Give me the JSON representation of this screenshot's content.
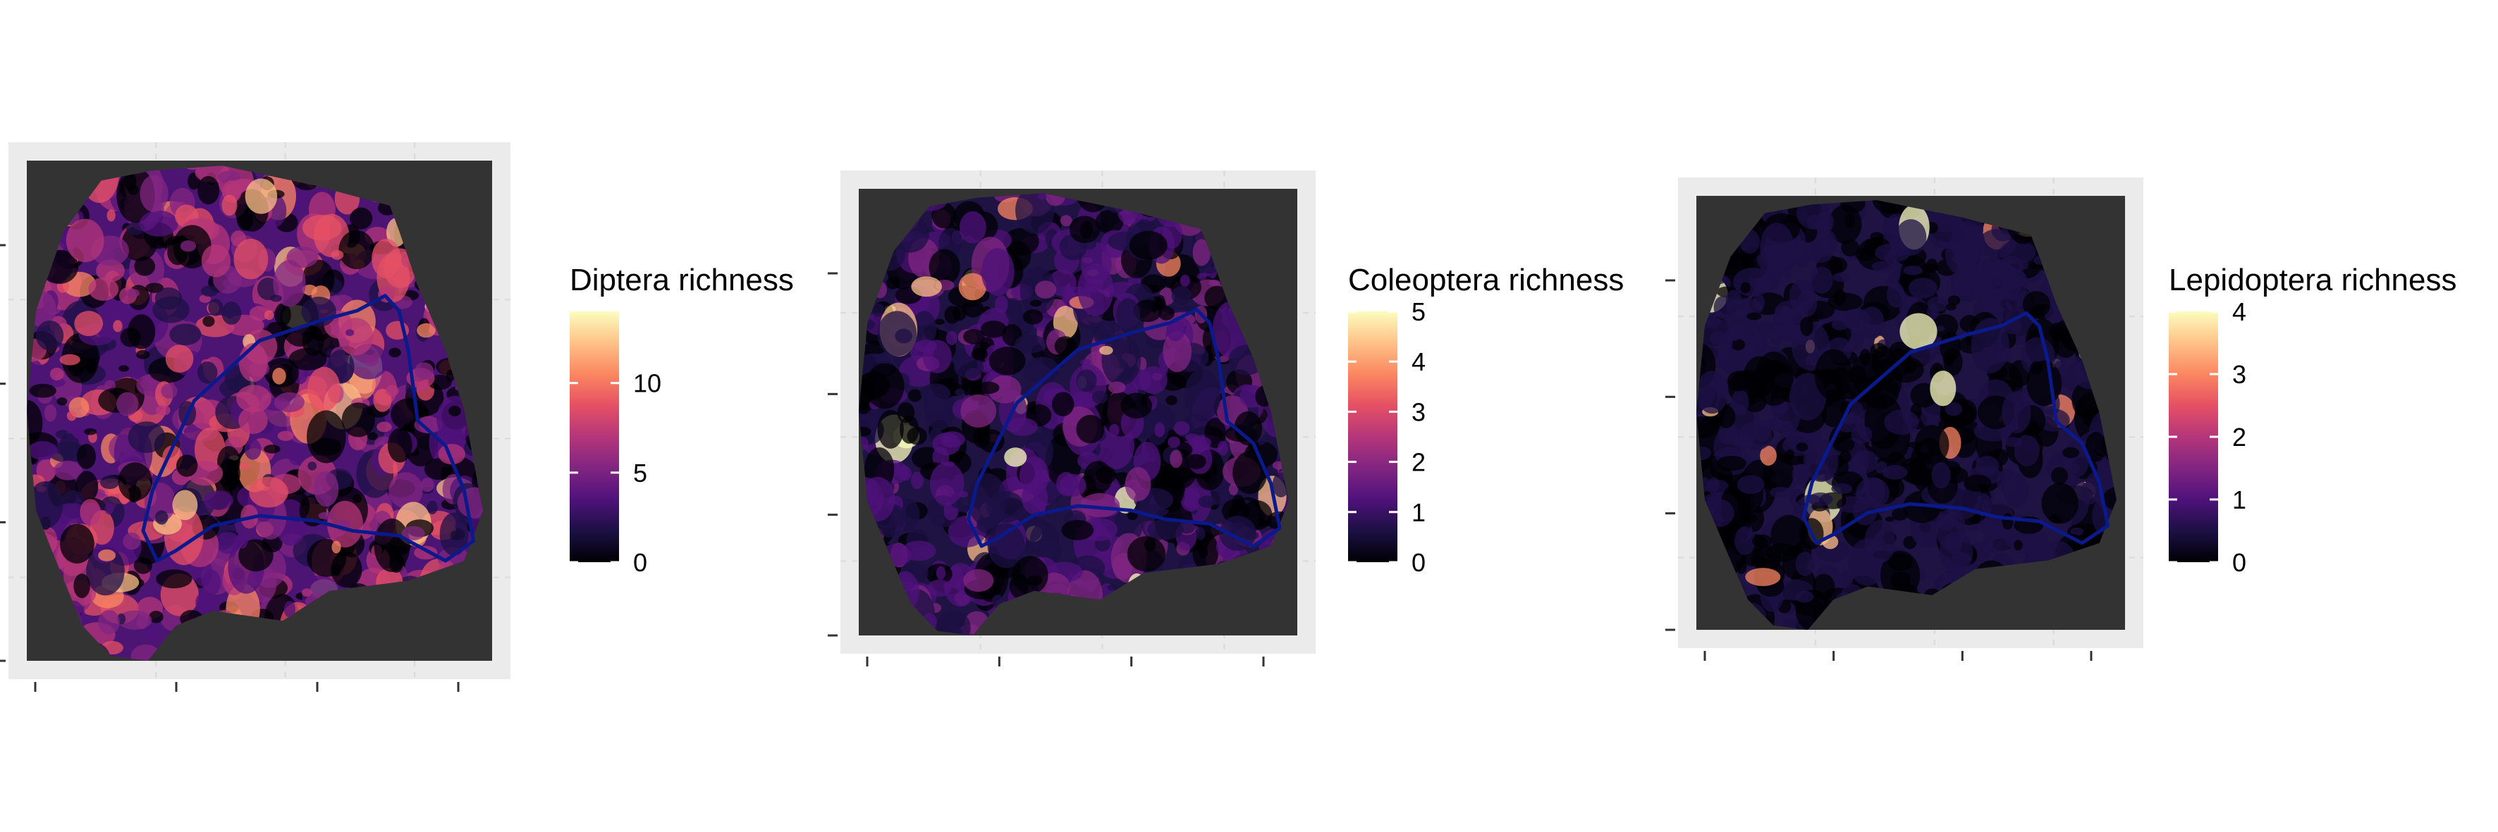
{
  "panels": [
    {
      "id": "diptera",
      "legend_title": "Diptera richness",
      "legend_ticks": [
        {
          "value": 0,
          "label": "0"
        },
        {
          "value": 5,
          "label": "5"
        },
        {
          "value": 10,
          "label": "10"
        }
      ],
      "legend_range": [
        0,
        14
      ],
      "intensity": 0.55
    },
    {
      "id": "coleoptera",
      "legend_title": "Coleoptera richness",
      "legend_ticks": [
        {
          "value": 0,
          "label": "0"
        },
        {
          "value": 1,
          "label": "1"
        },
        {
          "value": 2,
          "label": "2"
        },
        {
          "value": 3,
          "label": "3"
        },
        {
          "value": 4,
          "label": "4"
        },
        {
          "value": 5,
          "label": "5"
        }
      ],
      "legend_range": [
        0,
        5
      ],
      "intensity": 0.3
    },
    {
      "id": "lepidoptera",
      "legend_title": "Lepidoptera richness",
      "legend_ticks": [
        {
          "value": 0,
          "label": "0"
        },
        {
          "value": 1,
          "label": "1"
        },
        {
          "value": 2,
          "label": "2"
        },
        {
          "value": 3,
          "label": "3"
        },
        {
          "value": 4,
          "label": "4"
        }
      ],
      "legend_range": [
        0,
        4
      ],
      "intensity": 0.12
    }
  ],
  "colors": {
    "panel_background": "#ebebeb",
    "plot_background": "#333333",
    "gridline": "#d9d9d9",
    "boundary": "#0a1a8c",
    "magma": [
      "#000004",
      "#1c1044",
      "#4f127b",
      "#812581",
      "#b5367a",
      "#e55064",
      "#fb8761",
      "#fec287",
      "#fcfdbf"
    ]
  }
}
